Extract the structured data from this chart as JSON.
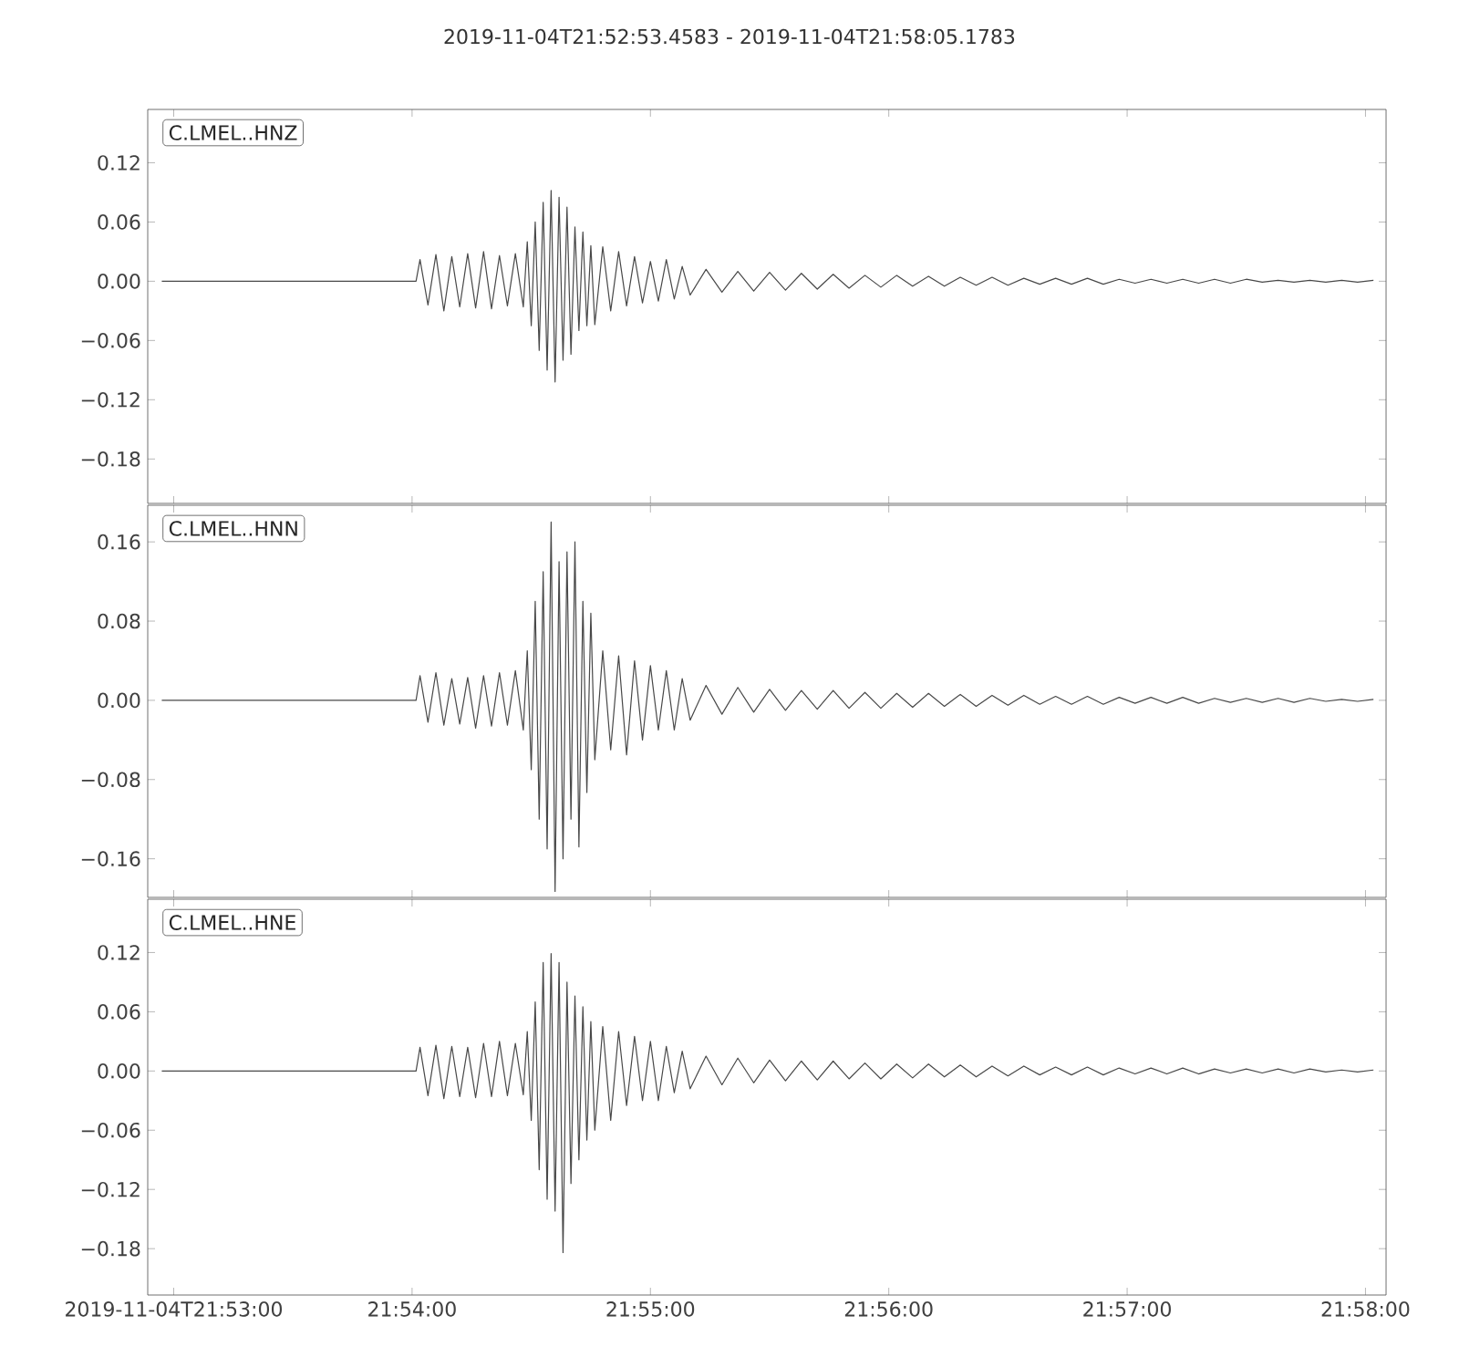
{
  "chart_data": [
    {
      "type": "line",
      "title": "2019-11-04T21:52:53.4583  -  2019-11-04T21:58:05.1783",
      "annotations": [
        "C.LMEL..HNZ"
      ],
      "tick_labels": "y",
      "xlim": [
        "2019-11-04T21:52:53.4583",
        "2019-11-04T21:58:05.1783"
      ],
      "xticks": [
        {
          "value": "2019-11-04T21:53:00",
          "label": null
        },
        {
          "value": "2019-11-04T21:54:00",
          "label": null
        },
        {
          "value": "2019-11-04T21:55:00",
          "label": null
        },
        {
          "value": "2019-11-04T21:56:00",
          "label": null
        },
        {
          "value": "2019-11-04T21:57:00",
          "label": null
        },
        {
          "value": "2019-11-04T21:58:00",
          "label": null
        }
      ],
      "ylim": [
        -0.225,
        0.174
      ],
      "yticks": [
        {
          "value": 0.12,
          "label": "0.12"
        },
        {
          "value": 0.06,
          "label": "0.06"
        },
        {
          "value": 0,
          "label": "0.00"
        },
        {
          "value": -0.06,
          "label": "−0.06"
        },
        {
          "value": -0.12,
          "label": "−0.12"
        },
        {
          "value": -0.18,
          "label": "−0.18"
        }
      ],
      "x": [
        "2019-11-04T21:52:57",
        "2019-11-04T21:54:01",
        "2019-11-04T21:54:02",
        "2019-11-04T21:54:04",
        "2019-11-04T21:54:06",
        "2019-11-04T21:54:08",
        "2019-11-04T21:54:10",
        "2019-11-04T21:54:12",
        "2019-11-04T21:54:14",
        "2019-11-04T21:54:16",
        "2019-11-04T21:54:18",
        "2019-11-04T21:54:20",
        "2019-11-04T21:54:22",
        "2019-11-04T21:54:24",
        "2019-11-04T21:54:26",
        "2019-11-04T21:54:28",
        "2019-11-04T21:54:29",
        "2019-11-04T21:54:30",
        "2019-11-04T21:54:31",
        "2019-11-04T21:54:32",
        "2019-11-04T21:54:33",
        "2019-11-04T21:54:34",
        "2019-11-04T21:54:35",
        "2019-11-04T21:54:36",
        "2019-11-04T21:54:37",
        "2019-11-04T21:54:38",
        "2019-11-04T21:54:39",
        "2019-11-04T21:54:40",
        "2019-11-04T21:54:41",
        "2019-11-04T21:54:42",
        "2019-11-04T21:54:43",
        "2019-11-04T21:54:44",
        "2019-11-04T21:54:45",
        "2019-11-04T21:54:46",
        "2019-11-04T21:54:48",
        "2019-11-04T21:54:50",
        "2019-11-04T21:54:52",
        "2019-11-04T21:54:54",
        "2019-11-04T21:54:56",
        "2019-11-04T21:54:58",
        "2019-11-04T21:55:00",
        "2019-11-04T21:55:02",
        "2019-11-04T21:55:04",
        "2019-11-04T21:55:06",
        "2019-11-04T21:55:08",
        "2019-11-04T21:55:10",
        "2019-11-04T21:55:14",
        "2019-11-04T21:55:18",
        "2019-11-04T21:55:22",
        "2019-11-04T21:55:26",
        "2019-11-04T21:55:30",
        "2019-11-04T21:55:34",
        "2019-11-04T21:55:38",
        "2019-11-04T21:55:42",
        "2019-11-04T21:55:46",
        "2019-11-04T21:55:50",
        "2019-11-04T21:55:54",
        "2019-11-04T21:55:58",
        "2019-11-04T21:56:02",
        "2019-11-04T21:56:06",
        "2019-11-04T21:56:10",
        "2019-11-04T21:56:14",
        "2019-11-04T21:56:18",
        "2019-11-04T21:56:22",
        "2019-11-04T21:56:26",
        "2019-11-04T21:56:30",
        "2019-11-04T21:56:34",
        "2019-11-04T21:56:38",
        "2019-11-04T21:56:42",
        "2019-11-04T21:56:46",
        "2019-11-04T21:56:50",
        "2019-11-04T21:56:54",
        "2019-11-04T21:56:58",
        "2019-11-04T21:57:02",
        "2019-11-04T21:57:06",
        "2019-11-04T21:57:10",
        "2019-11-04T21:57:14",
        "2019-11-04T21:57:18",
        "2019-11-04T21:57:22",
        "2019-11-04T21:57:26",
        "2019-11-04T21:57:30",
        "2019-11-04T21:57:34",
        "2019-11-04T21:57:38",
        "2019-11-04T21:57:42",
        "2019-11-04T21:57:46",
        "2019-11-04T21:57:50",
        "2019-11-04T21:57:54",
        "2019-11-04T21:57:58",
        "2019-11-04T21:58:02"
      ],
      "series": [
        {
          "color": "#484848",
          "values": [
            0,
            0,
            0.022,
            -0.024,
            0.027,
            -0.03,
            0.025,
            -0.026,
            0.028,
            -0.027,
            0.03,
            -0.028,
            0.026,
            -0.025,
            0.028,
            -0.026,
            0.04,
            -0.045,
            0.06,
            -0.07,
            0.08,
            -0.09,
            0.092,
            -0.102,
            0.085,
            -0.08,
            0.075,
            -0.074,
            0.055,
            -0.05,
            0.05,
            -0.045,
            0.036,
            -0.044,
            0.035,
            -0.03,
            0.03,
            -0.025,
            0.025,
            -0.022,
            0.02,
            -0.02,
            0.022,
            -0.018,
            0.015,
            -0.014,
            0.012,
            -0.011,
            0.01,
            -0.01,
            0.009,
            -0.009,
            0.008,
            -0.008,
            0.007,
            -0.007,
            0.006,
            -0.006,
            0.006,
            -0.005,
            0.005,
            -0.005,
            0.004,
            -0.004,
            0.004,
            -0.004,
            0.003,
            -0.003,
            0.003,
            -0.003,
            0.003,
            -0.003,
            0.002,
            -0.002,
            0.002,
            -0.002,
            0.002,
            -0.002,
            0.002,
            -0.002,
            0.002,
            -0.001,
            0.001,
            -0.001,
            0.001,
            -0.001,
            0.001,
            -0.001,
            0.001
          ]
        }
      ]
    },
    {
      "type": "line",
      "annotations": [
        "C.LMEL..HNN"
      ],
      "tick_labels": "y",
      "xlim": [
        "2019-11-04T21:52:53.4583",
        "2019-11-04T21:58:05.1783"
      ],
      "xticks": [
        {
          "value": "2019-11-04T21:53:00",
          "label": null
        },
        {
          "value": "2019-11-04T21:54:00",
          "label": null
        },
        {
          "value": "2019-11-04T21:55:00",
          "label": null
        },
        {
          "value": "2019-11-04T21:56:00",
          "label": null
        },
        {
          "value": "2019-11-04T21:57:00",
          "label": null
        },
        {
          "value": "2019-11-04T21:58:00",
          "label": null
        }
      ],
      "ylim": [
        -0.199,
        0.197
      ],
      "yticks": [
        {
          "value": 0.16,
          "label": "0.16"
        },
        {
          "value": 0.08,
          "label": "0.08"
        },
        {
          "value": 0,
          "label": "0.00"
        },
        {
          "value": -0.08,
          "label": "−0.08"
        },
        {
          "value": -0.16,
          "label": "−0.16"
        }
      ],
      "x": [
        "2019-11-04T21:52:57",
        "2019-11-04T21:54:01",
        "2019-11-04T21:54:02",
        "2019-11-04T21:54:04",
        "2019-11-04T21:54:06",
        "2019-11-04T21:54:08",
        "2019-11-04T21:54:10",
        "2019-11-04T21:54:12",
        "2019-11-04T21:54:14",
        "2019-11-04T21:54:16",
        "2019-11-04T21:54:18",
        "2019-11-04T21:54:20",
        "2019-11-04T21:54:22",
        "2019-11-04T21:54:24",
        "2019-11-04T21:54:26",
        "2019-11-04T21:54:28",
        "2019-11-04T21:54:29",
        "2019-11-04T21:54:30",
        "2019-11-04T21:54:31",
        "2019-11-04T21:54:32",
        "2019-11-04T21:54:33",
        "2019-11-04T21:54:34",
        "2019-11-04T21:54:35",
        "2019-11-04T21:54:36",
        "2019-11-04T21:54:37",
        "2019-11-04T21:54:38",
        "2019-11-04T21:54:39",
        "2019-11-04T21:54:40",
        "2019-11-04T21:54:41",
        "2019-11-04T21:54:42",
        "2019-11-04T21:54:43",
        "2019-11-04T21:54:44",
        "2019-11-04T21:54:45",
        "2019-11-04T21:54:46",
        "2019-11-04T21:54:48",
        "2019-11-04T21:54:50",
        "2019-11-04T21:54:52",
        "2019-11-04T21:54:54",
        "2019-11-04T21:54:56",
        "2019-11-04T21:54:58",
        "2019-11-04T21:55:00",
        "2019-11-04T21:55:02",
        "2019-11-04T21:55:04",
        "2019-11-04T21:55:06",
        "2019-11-04T21:55:08",
        "2019-11-04T21:55:10",
        "2019-11-04T21:55:14",
        "2019-11-04T21:55:18",
        "2019-11-04T21:55:22",
        "2019-11-04T21:55:26",
        "2019-11-04T21:55:30",
        "2019-11-04T21:55:34",
        "2019-11-04T21:55:38",
        "2019-11-04T21:55:42",
        "2019-11-04T21:55:46",
        "2019-11-04T21:55:50",
        "2019-11-04T21:55:54",
        "2019-11-04T21:55:58",
        "2019-11-04T21:56:02",
        "2019-11-04T21:56:06",
        "2019-11-04T21:56:10",
        "2019-11-04T21:56:14",
        "2019-11-04T21:56:18",
        "2019-11-04T21:56:22",
        "2019-11-04T21:56:26",
        "2019-11-04T21:56:30",
        "2019-11-04T21:56:34",
        "2019-11-04T21:56:38",
        "2019-11-04T21:56:42",
        "2019-11-04T21:56:46",
        "2019-11-04T21:56:50",
        "2019-11-04T21:56:54",
        "2019-11-04T21:56:58",
        "2019-11-04T21:57:02",
        "2019-11-04T21:57:06",
        "2019-11-04T21:57:10",
        "2019-11-04T21:57:14",
        "2019-11-04T21:57:18",
        "2019-11-04T21:57:22",
        "2019-11-04T21:57:26",
        "2019-11-04T21:57:30",
        "2019-11-04T21:57:34",
        "2019-11-04T21:57:38",
        "2019-11-04T21:57:42",
        "2019-11-04T21:57:46",
        "2019-11-04T21:57:50",
        "2019-11-04T21:57:54",
        "2019-11-04T21:57:58",
        "2019-11-04T21:58:02"
      ],
      "series": [
        {
          "color": "#484848",
          "values": [
            0,
            0,
            0.025,
            -0.022,
            0.028,
            -0.025,
            0.022,
            -0.024,
            0.023,
            -0.028,
            0.025,
            -0.026,
            0.028,
            -0.025,
            0.03,
            -0.03,
            0.05,
            -0.07,
            0.1,
            -0.12,
            0.13,
            -0.15,
            0.18,
            -0.193,
            0.14,
            -0.16,
            0.15,
            -0.12,
            0.16,
            -0.148,
            0.1,
            -0.093,
            0.088,
            -0.06,
            0.05,
            -0.05,
            0.045,
            -0.055,
            0.04,
            -0.04,
            0.035,
            -0.03,
            0.03,
            -0.03,
            0.022,
            -0.02,
            0.015,
            -0.014,
            0.013,
            -0.012,
            0.011,
            -0.01,
            0.01,
            -0.009,
            0.01,
            -0.008,
            0.008,
            -0.008,
            0.007,
            -0.007,
            0.007,
            -0.006,
            0.006,
            -0.006,
            0.005,
            -0.005,
            0.005,
            -0.004,
            0.004,
            -0.004,
            0.004,
            -0.004,
            0.003,
            -0.003,
            0.003,
            -0.003,
            0.003,
            -0.003,
            0.002,
            -0.002,
            0.002,
            -0.002,
            0.002,
            -0.002,
            0.002,
            -0.001,
            0.001,
            -0.001,
            0.001
          ]
        }
      ]
    },
    {
      "type": "line",
      "annotations": [
        "C.LMEL..HNE"
      ],
      "xlim": [
        "2019-11-04T21:52:53.4583",
        "2019-11-04T21:58:05.1783"
      ],
      "xticks": [
        {
          "value": "2019-11-04T21:53:00",
          "label": "2019-11-04T21:53:00"
        },
        {
          "value": "2019-11-04T21:54:00",
          "label": "21:54:00"
        },
        {
          "value": "2019-11-04T21:55:00",
          "label": "21:55:00"
        },
        {
          "value": "2019-11-04T21:56:00",
          "label": "21:56:00"
        },
        {
          "value": "2019-11-04T21:57:00",
          "label": "21:57:00"
        },
        {
          "value": "2019-11-04T21:58:00",
          "label": "21:58:00"
        }
      ],
      "ylim": [
        -0.227,
        0.174
      ],
      "yticks": [
        {
          "value": 0.12,
          "label": "0.12"
        },
        {
          "value": 0.06,
          "label": "0.06"
        },
        {
          "value": 0,
          "label": "0.00"
        },
        {
          "value": -0.06,
          "label": "−0.06"
        },
        {
          "value": -0.12,
          "label": "−0.12"
        },
        {
          "value": -0.18,
          "label": "−0.18"
        }
      ],
      "x": [
        "2019-11-04T21:52:57",
        "2019-11-04T21:54:01",
        "2019-11-04T21:54:02",
        "2019-11-04T21:54:04",
        "2019-11-04T21:54:06",
        "2019-11-04T21:54:08",
        "2019-11-04T21:54:10",
        "2019-11-04T21:54:12",
        "2019-11-04T21:54:14",
        "2019-11-04T21:54:16",
        "2019-11-04T21:54:18",
        "2019-11-04T21:54:20",
        "2019-11-04T21:54:22",
        "2019-11-04T21:54:24",
        "2019-11-04T21:54:26",
        "2019-11-04T21:54:28",
        "2019-11-04T21:54:29",
        "2019-11-04T21:54:30",
        "2019-11-04T21:54:31",
        "2019-11-04T21:54:32",
        "2019-11-04T21:54:33",
        "2019-11-04T21:54:34",
        "2019-11-04T21:54:35",
        "2019-11-04T21:54:36",
        "2019-11-04T21:54:37",
        "2019-11-04T21:54:38",
        "2019-11-04T21:54:39",
        "2019-11-04T21:54:40",
        "2019-11-04T21:54:41",
        "2019-11-04T21:54:42",
        "2019-11-04T21:54:43",
        "2019-11-04T21:54:44",
        "2019-11-04T21:54:45",
        "2019-11-04T21:54:46",
        "2019-11-04T21:54:48",
        "2019-11-04T21:54:50",
        "2019-11-04T21:54:52",
        "2019-11-04T21:54:54",
        "2019-11-04T21:54:56",
        "2019-11-04T21:54:58",
        "2019-11-04T21:55:00",
        "2019-11-04T21:55:02",
        "2019-11-04T21:55:04",
        "2019-11-04T21:55:06",
        "2019-11-04T21:55:08",
        "2019-11-04T21:55:10",
        "2019-11-04T21:55:14",
        "2019-11-04T21:55:18",
        "2019-11-04T21:55:22",
        "2019-11-04T21:55:26",
        "2019-11-04T21:55:30",
        "2019-11-04T21:55:34",
        "2019-11-04T21:55:38",
        "2019-11-04T21:55:42",
        "2019-11-04T21:55:46",
        "2019-11-04T21:55:50",
        "2019-11-04T21:55:54",
        "2019-11-04T21:55:58",
        "2019-11-04T21:56:02",
        "2019-11-04T21:56:06",
        "2019-11-04T21:56:10",
        "2019-11-04T21:56:14",
        "2019-11-04T21:56:18",
        "2019-11-04T21:56:22",
        "2019-11-04T21:56:26",
        "2019-11-04T21:56:30",
        "2019-11-04T21:56:34",
        "2019-11-04T21:56:38",
        "2019-11-04T21:56:42",
        "2019-11-04T21:56:46",
        "2019-11-04T21:56:50",
        "2019-11-04T21:56:54",
        "2019-11-04T21:56:58",
        "2019-11-04T21:57:02",
        "2019-11-04T21:57:06",
        "2019-11-04T21:57:10",
        "2019-11-04T21:57:14",
        "2019-11-04T21:57:18",
        "2019-11-04T21:57:22",
        "2019-11-04T21:57:26",
        "2019-11-04T21:57:30",
        "2019-11-04T21:57:34",
        "2019-11-04T21:57:38",
        "2019-11-04T21:57:42",
        "2019-11-04T21:57:46",
        "2019-11-04T21:57:50",
        "2019-11-04T21:57:54",
        "2019-11-04T21:57:58",
        "2019-11-04T21:58:02"
      ],
      "series": [
        {
          "color": "#484848",
          "values": [
            0,
            0,
            0.024,
            -0.025,
            0.026,
            -0.028,
            0.025,
            -0.026,
            0.024,
            -0.027,
            0.028,
            -0.026,
            0.03,
            -0.025,
            0.028,
            -0.024,
            0.04,
            -0.05,
            0.07,
            -0.1,
            0.11,
            -0.13,
            0.119,
            -0.142,
            0.11,
            -0.184,
            0.09,
            -0.114,
            0.076,
            -0.09,
            0.065,
            -0.07,
            0.05,
            -0.06,
            0.045,
            -0.05,
            0.04,
            -0.035,
            0.035,
            -0.03,
            0.03,
            -0.03,
            0.025,
            -0.022,
            0.02,
            -0.018,
            0.015,
            -0.014,
            0.013,
            -0.012,
            0.011,
            -0.01,
            0.01,
            -0.009,
            0.01,
            -0.008,
            0.008,
            -0.008,
            0.007,
            -0.007,
            0.007,
            -0.006,
            0.006,
            -0.006,
            0.005,
            -0.005,
            0.005,
            -0.004,
            0.004,
            -0.004,
            0.004,
            -0.004,
            0.003,
            -0.003,
            0.003,
            -0.003,
            0.003,
            -0.003,
            0.002,
            -0.002,
            0.002,
            -0.002,
            0.002,
            -0.002,
            0.002,
            -0.001,
            0.001,
            -0.001,
            0.001
          ]
        }
      ]
    }
  ]
}
